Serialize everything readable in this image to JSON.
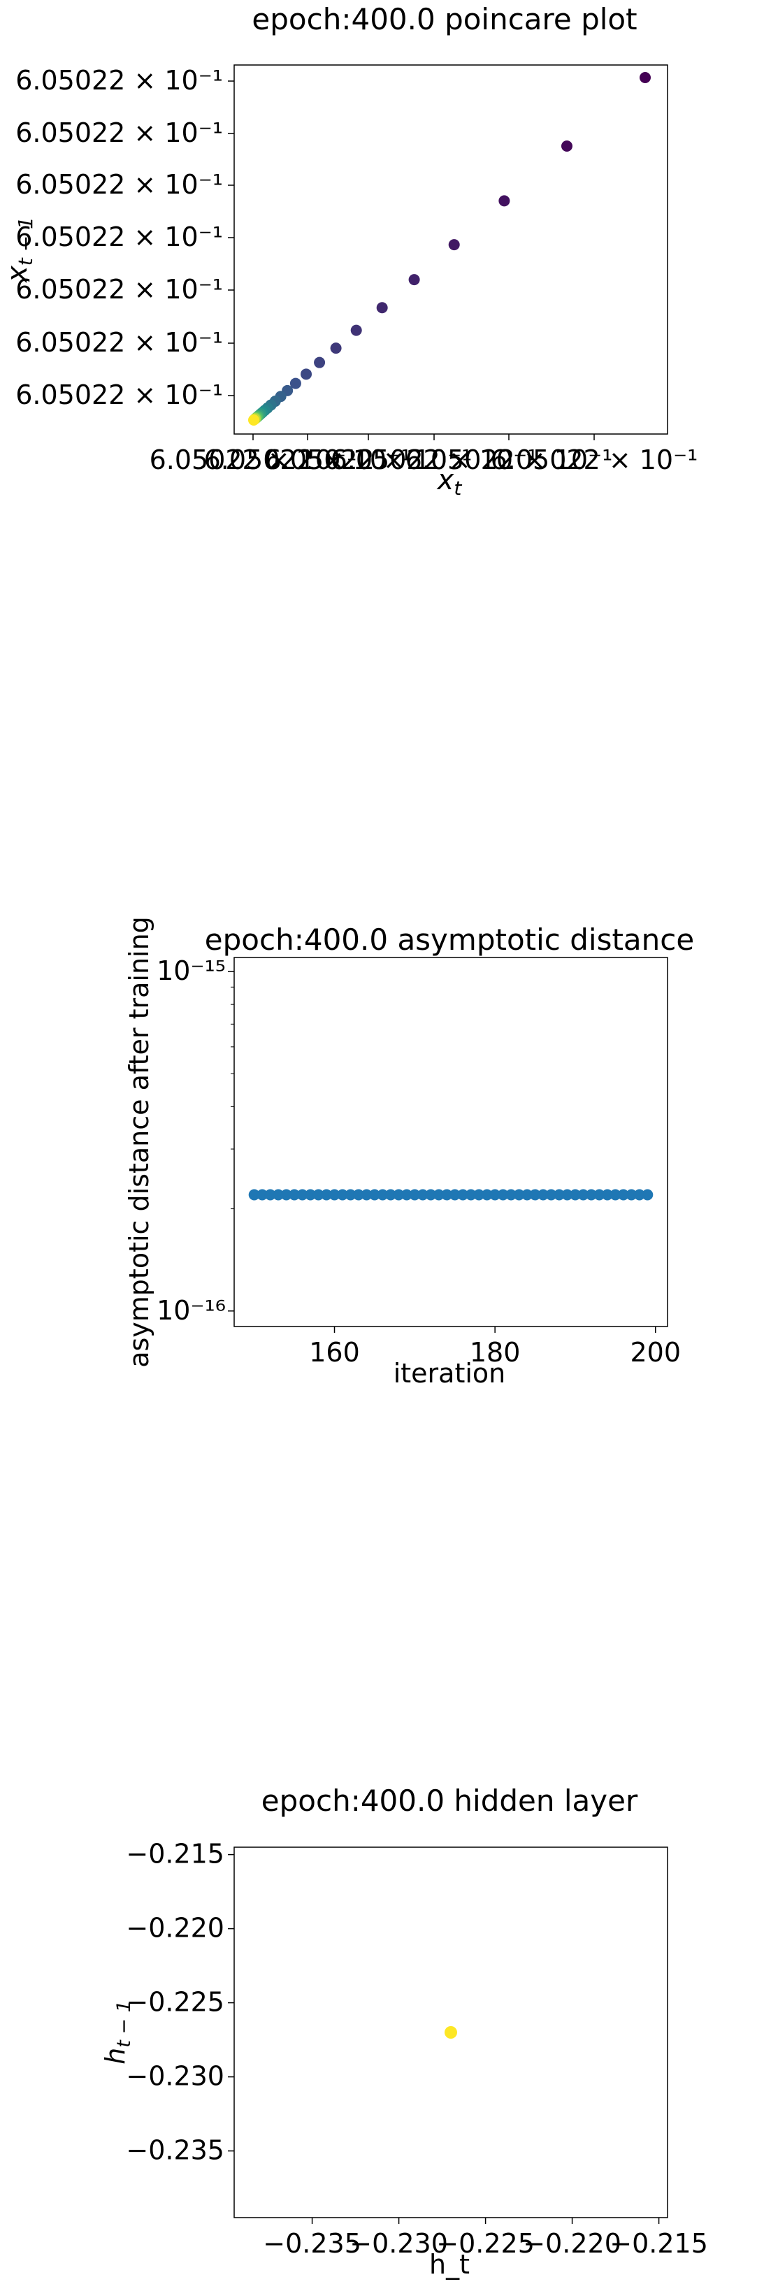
{
  "chart_data": [
    {
      "type": "scatter",
      "title": "epoch:400.0 poincare plot",
      "xlabel": "x_t",
      "ylabel": "x_{t-1}",
      "x_scale": "log",
      "y_scale": "log",
      "grid": false,
      "colormap": "viridis",
      "x_tick_labels": [
        "6.05022 × 10⁻¹",
        "6.05022 × 10⁻¹",
        "6.05022 × 10⁻¹",
        "6.05022 × 10⁻¹",
        "6.05022 × 10⁻¹",
        "6.05022 × 10⁻¹"
      ],
      "y_tick_labels": [
        "6.05022 × 10⁻¹",
        "6.05022 × 10⁻¹",
        "6.05022 × 10⁻¹",
        "6.05022 × 10⁻¹",
        "6.05022 × 10⁻¹",
        "6.05022 × 10⁻¹",
        "6.05022 × 10⁻¹"
      ],
      "x_range_offset_relative": [
        -0.02,
        1.04
      ],
      "points_relative": [
        {
          "x": 1.0,
          "y": 1.0,
          "c": 0.0
        },
        {
          "x": 0.8,
          "y": 0.8,
          "c": 0.02
        },
        {
          "x": 0.64,
          "y": 0.64,
          "c": 0.05
        },
        {
          "x": 0.512,
          "y": 0.512,
          "c": 0.07
        },
        {
          "x": 0.41,
          "y": 0.41,
          "c": 0.1
        },
        {
          "x": 0.328,
          "y": 0.328,
          "c": 0.12
        },
        {
          "x": 0.262,
          "y": 0.262,
          "c": 0.15
        },
        {
          "x": 0.21,
          "y": 0.21,
          "c": 0.17
        },
        {
          "x": 0.168,
          "y": 0.168,
          "c": 0.2
        },
        {
          "x": 0.134,
          "y": 0.134,
          "c": 0.22
        },
        {
          "x": 0.107,
          "y": 0.107,
          "c": 0.25
        },
        {
          "x": 0.086,
          "y": 0.086,
          "c": 0.28
        },
        {
          "x": 0.069,
          "y": 0.069,
          "c": 0.31
        },
        {
          "x": 0.055,
          "y": 0.055,
          "c": 0.34
        },
        {
          "x": 0.044,
          "y": 0.044,
          "c": 0.38
        },
        {
          "x": 0.035,
          "y": 0.035,
          "c": 0.42
        },
        {
          "x": 0.028,
          "y": 0.028,
          "c": 0.46
        },
        {
          "x": 0.022,
          "y": 0.022,
          "c": 0.5
        },
        {
          "x": 0.018,
          "y": 0.018,
          "c": 0.54
        },
        {
          "x": 0.014,
          "y": 0.014,
          "c": 0.58
        },
        {
          "x": 0.011,
          "y": 0.011,
          "c": 0.63
        },
        {
          "x": 0.009,
          "y": 0.009,
          "c": 0.68
        },
        {
          "x": 0.007,
          "y": 0.007,
          "c": 0.74
        },
        {
          "x": 0.005,
          "y": 0.005,
          "c": 0.82
        },
        {
          "x": 0.003,
          "y": 0.003,
          "c": 0.9
        },
        {
          "x": 0.0,
          "y": 0.0,
          "c": 1.0
        }
      ]
    },
    {
      "type": "scatter",
      "title": "epoch:400.0 asymptotic distance",
      "xlabel": "iteration",
      "ylabel": "asymptotic distance after training",
      "y_scale": "log",
      "grid": false,
      "color": "#1f77b4",
      "xlim": [
        147.5,
        201.5
      ],
      "ylim": [
        9e-17,
        1.1e-15
      ],
      "x_ticks": [
        160,
        180,
        200
      ],
      "y_ticks": [
        {
          "value": 1e-16,
          "label": "10⁻¹⁶"
        },
        {
          "value": 1e-15,
          "label": "10⁻¹⁵"
        }
      ],
      "x": [
        150,
        151,
        152,
        153,
        154,
        155,
        156,
        157,
        158,
        159,
        160,
        161,
        162,
        163,
        164,
        165,
        166,
        167,
        168,
        169,
        170,
        171,
        172,
        173,
        174,
        175,
        176,
        177,
        178,
        179,
        180,
        181,
        182,
        183,
        184,
        185,
        186,
        187,
        188,
        189,
        190,
        191,
        192,
        193,
        194,
        195,
        196,
        197,
        198,
        199
      ],
      "y_value": 2.2e-16
    },
    {
      "type": "scatter",
      "title": "epoch:400.0 hidden layer",
      "xlabel": "h_t",
      "ylabel": "h_{t-1}",
      "grid": false,
      "xlim": [
        -0.2395,
        -0.2145
      ],
      "ylim": [
        -0.2395,
        -0.2145
      ],
      "x_ticks": [
        -0.235,
        -0.23,
        -0.225,
        -0.22,
        -0.215
      ],
      "y_ticks": [
        -0.235,
        -0.23,
        -0.225,
        -0.22,
        -0.215
      ],
      "tick_labels": [
        "−0.235",
        "−0.230",
        "−0.225",
        "−0.220",
        "−0.215"
      ],
      "points": [
        {
          "x": -0.227,
          "y": -0.227
        }
      ],
      "color": "#fde725"
    }
  ]
}
